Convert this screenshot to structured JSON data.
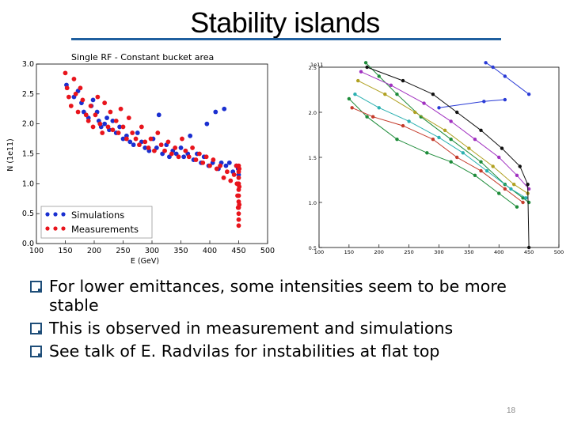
{
  "slide": {
    "title": "Stability islands",
    "page_number": "18",
    "bullets": [
      "For lower emittances, some intensities seem to be more stable",
      "This is observed in measurement and simulations",
      "See talk of E. Radvilas for instabilities at flat top"
    ],
    "accent_color": "#1f5f9f"
  },
  "chart_data": [
    {
      "type": "scatter",
      "title": "Single RF - Constant bucket area",
      "xlabel": "E (GeV)",
      "ylabel": "N (1e11)",
      "xlim": [
        100,
        500
      ],
      "ylim": [
        0.0,
        3.0
      ],
      "x_ticks": [
        "100",
        "150",
        "200",
        "250",
        "300",
        "350",
        "400",
        "450",
        "500"
      ],
      "y_ticks": [
        "0.0",
        "0.5",
        "1.0",
        "1.5",
        "2.0",
        "2.5",
        "3.0"
      ],
      "legend_position": "lower-left",
      "series": [
        {
          "name": "Simulations",
          "color": "#1a2fd0",
          "points": [
            [
              152,
              2.65
            ],
            [
              165,
              2.45
            ],
            [
              172,
              2.55
            ],
            [
              178,
              2.35
            ],
            [
              182,
              2.2
            ],
            [
              190,
              2.1
            ],
            [
              195,
              2.3
            ],
            [
              198,
              2.4
            ],
            [
              205,
              2.2
            ],
            [
              208,
              2.05
            ],
            [
              212,
              1.95
            ],
            [
              218,
              2.0
            ],
            [
              222,
              2.1
            ],
            [
              226,
              1.9
            ],
            [
              232,
              2.05
            ],
            [
              238,
              1.85
            ],
            [
              244,
              1.95
            ],
            [
              250,
              1.75
            ],
            [
              256,
              1.8
            ],
            [
              262,
              1.7
            ],
            [
              268,
              1.65
            ],
            [
              275,
              1.85
            ],
            [
              282,
              1.7
            ],
            [
              288,
              1.6
            ],
            [
              295,
              1.55
            ],
            [
              302,
              1.75
            ],
            [
              308,
              1.6
            ],
            [
              312,
              2.15
            ],
            [
              318,
              1.5
            ],
            [
              325,
              1.65
            ],
            [
              330,
              1.45
            ],
            [
              336,
              1.55
            ],
            [
              342,
              1.5
            ],
            [
              350,
              1.6
            ],
            [
              355,
              1.45
            ],
            [
              362,
              1.5
            ],
            [
              366,
              1.8
            ],
            [
              372,
              1.4
            ],
            [
              378,
              1.5
            ],
            [
              385,
              1.35
            ],
            [
              390,
              1.45
            ],
            [
              395,
              2.0
            ],
            [
              398,
              1.3
            ],
            [
              405,
              1.35
            ],
            [
              410,
              2.2
            ],
            [
              415,
              1.25
            ],
            [
              420,
              1.35
            ],
            [
              425,
              2.25
            ],
            [
              428,
              1.3
            ],
            [
              434,
              1.35
            ],
            [
              440,
              1.2
            ],
            [
              446,
              1.3
            ],
            [
              449,
              1.25
            ],
            [
              450,
              1.15
            ]
          ]
        },
        {
          "name": "Measurements",
          "color": "#e8141c",
          "points": [
            [
              150,
              2.85
            ],
            [
              153,
              2.6
            ],
            [
              156,
              2.45
            ],
            [
              160,
              2.3
            ],
            [
              165,
              2.75
            ],
            [
              168,
              2.5
            ],
            [
              172,
              2.2
            ],
            [
              176,
              2.6
            ],
            [
              180,
              2.4
            ],
            [
              186,
              2.15
            ],
            [
              190,
              2.05
            ],
            [
              194,
              2.3
            ],
            [
              198,
              1.95
            ],
            [
              202,
              2.15
            ],
            [
              206,
              2.45
            ],
            [
              210,
              2.0
            ],
            [
              214,
              1.85
            ],
            [
              218,
              2.35
            ],
            [
              224,
              1.95
            ],
            [
              228,
              2.2
            ],
            [
              232,
              1.9
            ],
            [
              238,
              2.05
            ],
            [
              242,
              1.85
            ],
            [
              246,
              2.25
            ],
            [
              250,
              1.95
            ],
            [
              256,
              1.75
            ],
            [
              260,
              2.1
            ],
            [
              266,
              1.85
            ],
            [
              272,
              1.75
            ],
            [
              278,
              1.65
            ],
            [
              282,
              1.95
            ],
            [
              288,
              1.7
            ],
            [
              294,
              1.6
            ],
            [
              298,
              1.75
            ],
            [
              304,
              1.55
            ],
            [
              310,
              1.85
            ],
            [
              316,
              1.65
            ],
            [
              322,
              1.55
            ],
            [
              328,
              1.7
            ],
            [
              334,
              1.5
            ],
            [
              340,
              1.6
            ],
            [
              346,
              1.45
            ],
            [
              352,
              1.75
            ],
            [
              358,
              1.55
            ],
            [
              364,
              1.45
            ],
            [
              370,
              1.6
            ],
            [
              376,
              1.4
            ],
            [
              382,
              1.5
            ],
            [
              388,
              1.35
            ],
            [
              394,
              1.45
            ],
            [
              400,
              1.3
            ],
            [
              406,
              1.4
            ],
            [
              412,
              1.25
            ],
            [
              418,
              1.3
            ],
            [
              424,
              1.1
            ],
            [
              430,
              1.2
            ],
            [
              436,
              1.05
            ],
            [
              442,
              1.15
            ],
            [
              446,
              1.3
            ],
            [
              447,
              1.0
            ],
            [
              448,
              0.8
            ],
            [
              449,
              0.6
            ],
            [
              450,
              1.3
            ],
            [
              450,
              1.2
            ],
            [
              450,
              1.1
            ],
            [
              450,
              1.0
            ],
            [
              450,
              0.9
            ],
            [
              450,
              0.8
            ],
            [
              450,
              0.7
            ],
            [
              450,
              0.6
            ],
            [
              450,
              0.5
            ],
            [
              450,
              0.4
            ],
            [
              450,
              0.3
            ],
            [
              451,
              1.25
            ],
            [
              451,
              0.95
            ],
            [
              451,
              0.65
            ]
          ]
        }
      ]
    },
    {
      "type": "line",
      "title": "",
      "y_offset_label": "1e11",
      "xlim": [
        100,
        500
      ],
      "ylim": [
        0.5,
        2.5
      ],
      "x_ticks": [
        "100",
        "150",
        "200",
        "250",
        "300",
        "350",
        "400",
        "450",
        "500"
      ],
      "y_ticks": [
        "0.5",
        "1.0",
        "1.5",
        "2.0",
        "2.5"
      ],
      "series": [
        {
          "color": "#2a3bd6",
          "points": [
            [
              378,
              2.55
            ],
            [
              390,
              2.5
            ],
            [
              410,
              2.4
            ],
            [
              450,
              2.2
            ]
          ]
        },
        {
          "color": "#2a3bd6",
          "points": [
            [
              300,
              2.05
            ],
            [
              375,
              2.12
            ],
            [
              410,
              2.14
            ]
          ]
        },
        {
          "color": "#1e8c3a",
          "points": [
            [
              178,
              2.55
            ],
            [
              200,
              2.4
            ],
            [
              230,
              2.2
            ],
            [
              270,
              1.95
            ],
            [
              320,
              1.7
            ],
            [
              370,
              1.45
            ],
            [
              410,
              1.2
            ],
            [
              440,
              1.05
            ],
            [
              450,
              1.0
            ]
          ]
        },
        {
          "color": "#1e8c3a",
          "points": [
            [
              150,
              2.15
            ],
            [
              180,
              1.95
            ],
            [
              230,
              1.7
            ],
            [
              280,
              1.55
            ],
            [
              320,
              1.45
            ],
            [
              360,
              1.3
            ],
            [
              400,
              1.1
            ],
            [
              430,
              0.95
            ]
          ]
        },
        {
          "color": "#c43a2a",
          "points": [
            [
              155,
              2.05
            ],
            [
              190,
              1.95
            ],
            [
              240,
              1.85
            ],
            [
              290,
              1.7
            ],
            [
              330,
              1.5
            ],
            [
              370,
              1.35
            ],
            [
              410,
              1.15
            ],
            [
              440,
              1.0
            ]
          ]
        },
        {
          "color": "#2ab0b0",
          "points": [
            [
              160,
              2.2
            ],
            [
              200,
              2.05
            ],
            [
              250,
              1.9
            ],
            [
              300,
              1.72
            ],
            [
              340,
              1.55
            ],
            [
              380,
              1.35
            ],
            [
              420,
              1.15
            ],
            [
              445,
              1.05
            ]
          ]
        },
        {
          "color": "#b0a020",
          "points": [
            [
              165,
              2.35
            ],
            [
              210,
              2.2
            ],
            [
              260,
              2.0
            ],
            [
              310,
              1.8
            ],
            [
              350,
              1.6
            ],
            [
              390,
              1.4
            ],
            [
              425,
              1.2
            ],
            [
              448,
              1.1
            ]
          ]
        },
        {
          "color": "#a030c0",
          "points": [
            [
              170,
              2.45
            ],
            [
              220,
              2.3
            ],
            [
              275,
              2.1
            ],
            [
              320,
              1.9
            ],
            [
              360,
              1.7
            ],
            [
              400,
              1.5
            ],
            [
              430,
              1.3
            ],
            [
              450,
              1.15
            ]
          ]
        },
        {
          "color": "#111111",
          "points": [
            [
              180,
              2.5
            ],
            [
              240,
              2.35
            ],
            [
              290,
              2.2
            ],
            [
              330,
              2.0
            ],
            [
              370,
              1.8
            ],
            [
              405,
              1.6
            ],
            [
              435,
              1.4
            ],
            [
              448,
              1.2
            ],
            [
              450,
              0.5
            ]
          ]
        }
      ]
    }
  ]
}
